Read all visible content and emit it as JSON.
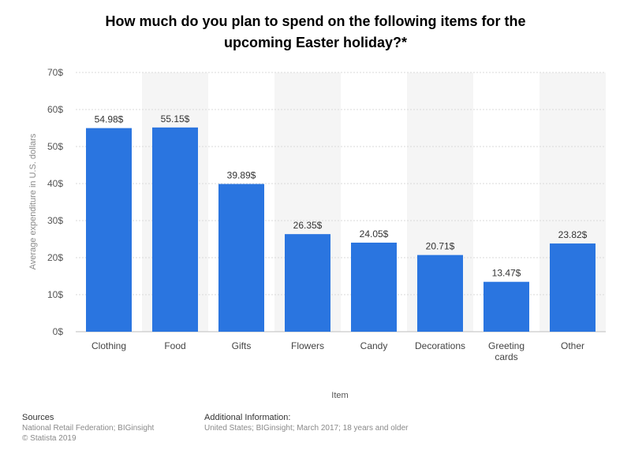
{
  "title_lines": [
    "How much do you plan to spend on the following items for the",
    "upcoming Easter holiday?*"
  ],
  "chart_data": {
    "type": "bar",
    "categories": [
      [
        "Clothing"
      ],
      [
        "Food"
      ],
      [
        "Gifts"
      ],
      [
        "Flowers"
      ],
      [
        "Candy"
      ],
      [
        "Decorations"
      ],
      [
        "Greeting",
        "cards"
      ],
      [
        "Other"
      ]
    ],
    "values": [
      54.98,
      55.15,
      39.89,
      26.35,
      24.05,
      20.71,
      13.47,
      23.82
    ],
    "value_labels": [
      "54.98$",
      "55.15$",
      "39.89$",
      "26.35$",
      "24.05$",
      "20.71$",
      "13.47$",
      "23.82$"
    ],
    "y_ticks": [
      0,
      10,
      20,
      30,
      40,
      50,
      60,
      70
    ],
    "y_tick_labels": [
      "0$",
      "10$",
      "20$",
      "30$",
      "40$",
      "50$",
      "60$",
      "70$"
    ],
    "ylim": [
      0,
      70
    ],
    "xlabel": "Item",
    "ylabel": "Average expenditure in U.S. dollars",
    "grid": true,
    "bar_color": "#2a75e0"
  },
  "footer": {
    "sources_heading": "Sources",
    "sources_lines": [
      "National Retail Federation; BIGinsight",
      "© Statista 2019"
    ],
    "info_heading": "Additional Information:",
    "info_lines": [
      "United States; BIGinsight; March 2017; 18 years and older"
    ]
  }
}
